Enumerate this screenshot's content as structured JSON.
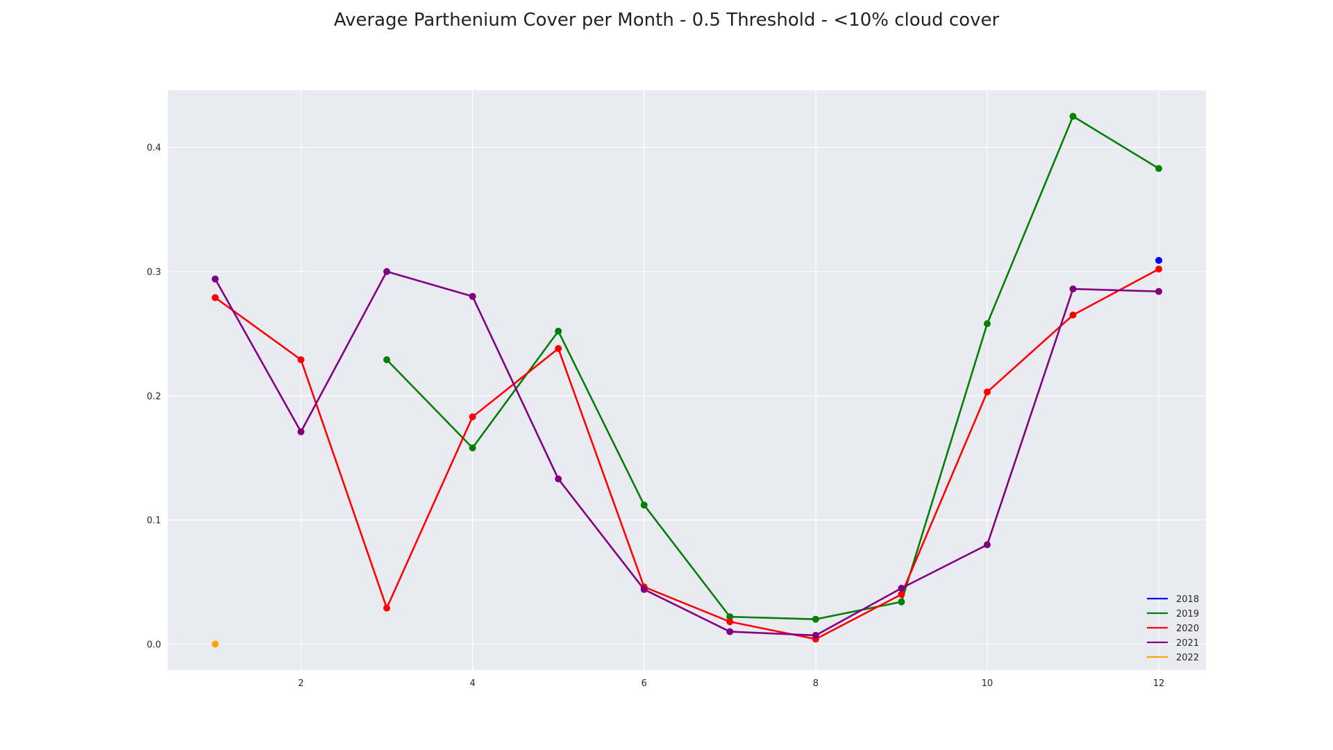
{
  "chart_data": {
    "type": "line",
    "title": "Average Parthenium Cover per Month - 0.5 Threshold - <10% cloud cover",
    "xlabel": "",
    "ylabel": "",
    "xlim": [
      0.45,
      12.55
    ],
    "ylim": [
      -0.021,
      0.446
    ],
    "xticks": [
      2,
      4,
      6,
      8,
      10,
      12
    ],
    "yticks": [
      0.0,
      0.1,
      0.2,
      0.3,
      0.4
    ],
    "xtick_labels": [
      "2",
      "4",
      "6",
      "8",
      "10",
      "12"
    ],
    "ytick_labels": [
      "0.0",
      "0.1",
      "0.2",
      "0.3",
      "0.4"
    ],
    "grid": true,
    "legend_position": "bottom-right",
    "background": "#eaeaf2",
    "series": [
      {
        "name": "2018",
        "color": "#0000ff",
        "points": [
          [
            12,
            0.309
          ]
        ]
      },
      {
        "name": "2019",
        "color": "#008000",
        "points": [
          [
            3,
            0.229
          ],
          [
            4,
            0.158
          ],
          [
            5,
            0.252
          ],
          [
            6,
            0.112
          ],
          [
            7,
            0.022
          ],
          [
            8,
            0.02
          ],
          [
            9,
            0.034
          ],
          [
            10,
            0.258
          ],
          [
            11,
            0.425
          ],
          [
            12,
            0.383
          ]
        ]
      },
      {
        "name": "2020",
        "color": "#ff0000",
        "points": [
          [
            1,
            0.279
          ],
          [
            2,
            0.229
          ],
          [
            3,
            0.029
          ],
          [
            4,
            0.183
          ],
          [
            5,
            0.238
          ],
          [
            6,
            0.046
          ],
          [
            7,
            0.018
          ],
          [
            8,
            0.004
          ],
          [
            9,
            0.04
          ],
          [
            10,
            0.203
          ],
          [
            11,
            0.265
          ],
          [
            12,
            0.302
          ]
        ]
      },
      {
        "name": "2021",
        "color": "#800080",
        "points": [
          [
            1,
            0.294
          ],
          [
            2,
            0.171
          ],
          [
            3,
            0.3
          ],
          [
            4,
            0.28
          ],
          [
            5,
            0.133
          ],
          [
            6,
            0.044
          ],
          [
            7,
            0.01
          ],
          [
            8,
            0.007
          ],
          [
            9,
            0.045
          ],
          [
            10,
            0.08
          ],
          [
            11,
            0.286
          ],
          [
            12,
            0.284
          ]
        ]
      },
      {
        "name": "2022",
        "color": "#ffa500",
        "points": [
          [
            1,
            0.0
          ]
        ]
      }
    ]
  }
}
